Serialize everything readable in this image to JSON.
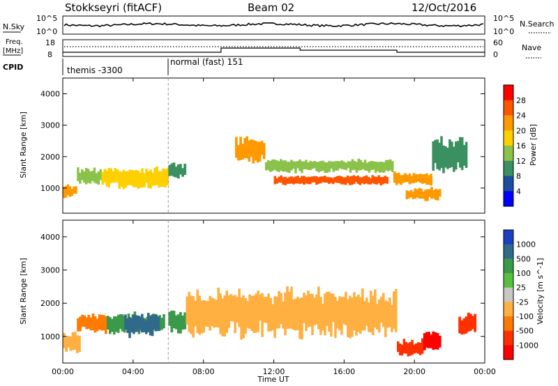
{
  "header": {
    "station": "Stokkseyri (fitACF)",
    "beam": "Beam 02",
    "date": "12/Oct/2016"
  },
  "nsky_panel": {
    "left_label": "N.Sky",
    "left_ticks": [
      "10^5",
      "10^0"
    ],
    "right_ticks": [
      "10^5",
      "10^0"
    ],
    "right_label": "N.Search"
  },
  "freq_panel": {
    "left_label_line1": "Freq.",
    "left_label_line2": "[MHz]",
    "left_ticks": [
      "18",
      "8"
    ],
    "right_ticks": [
      "60",
      "0"
    ],
    "right_label": "Nave"
  },
  "cpid_panel": {
    "label": "CPID",
    "modes": [
      {
        "name": "themis -3300",
        "start_hour": 0
      },
      {
        "name": "normal (fast) 151",
        "start_hour": 6
      }
    ]
  },
  "power_panel": {
    "ylabel": "Slant Range [km]",
    "colorbar_label": "Power [dB]",
    "colorbar_ticks": [
      "28",
      "24",
      "20",
      "16",
      "12",
      "8",
      "4"
    ],
    "colorbar_colors": [
      "#ff0000",
      "#ff5500",
      "#ff9900",
      "#ffd000",
      "#8bc34a",
      "#3a9060",
      "#1c4ea0",
      "#0000ff"
    ]
  },
  "velocity_panel": {
    "ylabel": "Slant Range [km]",
    "colorbar_label": "Velocity [m s^-1]",
    "colorbar_ticks": [
      "1000",
      "500",
      "100",
      "25",
      "-25",
      "-100",
      "-500",
      "-1000"
    ],
    "colorbar_colors": [
      "#1a3fc0",
      "#2f6a8a",
      "#3a9a4a",
      "#58c040",
      "#c8c8c0",
      "#ffb040",
      "#ff7a00",
      "#ff3000",
      "#ff0000"
    ]
  },
  "xaxis": {
    "label": "Time UT",
    "ticks": [
      "00:00",
      "04:00",
      "08:00",
      "12:00",
      "16:00",
      "20:00",
      "00:00"
    ]
  },
  "chart_data": {
    "type": "heatmap",
    "title": "Stokkseyri (fitACF)",
    "xlabel": "Time UT",
    "ylabel": "Slant Range [km]",
    "xlim": [
      0,
      24
    ],
    "ylim": [
      200,
      4500
    ],
    "y_ticks": [
      1000,
      2000,
      3000,
      4000
    ],
    "power_bands": [
      {
        "t0": 0.0,
        "t1": 0.8,
        "r0": 700,
        "r1": 1100,
        "power_db": 20
      },
      {
        "t0": 0.8,
        "t1": 2.2,
        "r0": 1100,
        "r1": 1650,
        "power_db": 14
      },
      {
        "t0": 2.2,
        "t1": 6.0,
        "r0": 1000,
        "r1": 1650,
        "power_db": 18
      },
      {
        "t0": 6.0,
        "t1": 7.0,
        "r0": 1300,
        "r1": 1800,
        "power_db": 10
      },
      {
        "t0": 9.8,
        "t1": 11.5,
        "r0": 1800,
        "r1": 2600,
        "power_db": 20
      },
      {
        "t0": 11.5,
        "t1": 18.8,
        "r0": 1500,
        "r1": 1900,
        "power_db": 14
      },
      {
        "t0": 12.0,
        "t1": 18.5,
        "r0": 1100,
        "r1": 1400,
        "power_db": 24
      },
      {
        "t0": 18.8,
        "t1": 21.0,
        "r0": 1100,
        "r1": 1500,
        "power_db": 22
      },
      {
        "t0": 19.5,
        "t1": 21.5,
        "r0": 600,
        "r1": 1000,
        "power_db": 20
      },
      {
        "t0": 21.0,
        "t1": 23.0,
        "r0": 1500,
        "r1": 2600,
        "power_db": 10
      }
    ],
    "velocity_bands": [
      {
        "t0": 0.0,
        "t1": 1.0,
        "r0": 500,
        "r1": 1100,
        "velocity": -25
      },
      {
        "t0": 0.8,
        "t1": 2.5,
        "r0": 1100,
        "r1": 1700,
        "velocity": -100
      },
      {
        "t0": 2.5,
        "t1": 5.8,
        "r0": 1100,
        "r1": 1700,
        "velocity": 100
      },
      {
        "t0": 3.5,
        "t1": 5.5,
        "r0": 1000,
        "r1": 1700,
        "velocity": 500
      },
      {
        "t0": 6.0,
        "t1": 7.0,
        "r0": 1100,
        "r1": 1800,
        "velocity": 100
      },
      {
        "t0": 7.0,
        "t1": 19.0,
        "r0": 1000,
        "r1": 2400,
        "velocity": 0
      },
      {
        "t0": 19.0,
        "t1": 20.5,
        "r0": 400,
        "r1": 900,
        "velocity": -500
      },
      {
        "t0": 20.5,
        "t1": 21.5,
        "r0": 600,
        "r1": 1200,
        "velocity": -1000
      },
      {
        "t0": 22.5,
        "t1": 23.5,
        "r0": 1000,
        "r1": 1700,
        "velocity": -500
      }
    ]
  }
}
